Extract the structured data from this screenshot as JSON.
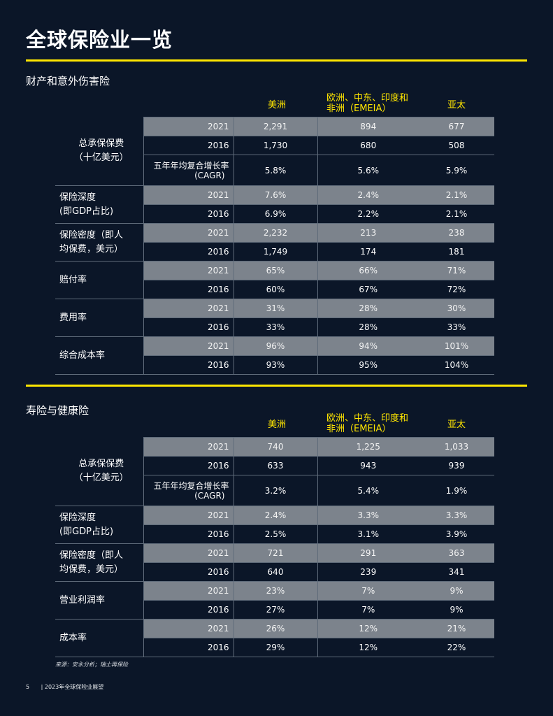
{
  "page_title": "全球保险业一览",
  "columns": {
    "americas": "美洲",
    "emeia_line1": "欧洲、中东、印度和",
    "emeia_line2": "非洲（EMEIA）",
    "apac": "亚太"
  },
  "pc": {
    "title": "财产和意外伤害险",
    "gwp_label_line1": "总承保保费",
    "gwp_label_line2": "（十亿美元）",
    "cagr_label_line1": "五年年均复合增长率",
    "cagr_label_line2": "(CAGR)",
    "gwp": [
      {
        "year": "2021",
        "am": "2,291",
        "em": "894",
        "ap": "677"
      },
      {
        "year": "2016",
        "am": "1,730",
        "em": "680",
        "ap": "508"
      }
    ],
    "cagr": {
      "am": "5.8%",
      "em": "5.6%",
      "ap": "5.9%"
    },
    "groups": [
      {
        "label_line1": "保险深度",
        "label_line2": "(即GDP占比)",
        "rows": [
          {
            "year": "2021",
            "am": "7.6%",
            "em": "2.4%",
            "ap": "2.1%"
          },
          {
            "year": "2016",
            "am": "6.9%",
            "em": "2.2%",
            "ap": "2.1%"
          }
        ]
      },
      {
        "label_line1": "保险密度（即人",
        "label_line2": "均保费，美元）",
        "rows": [
          {
            "year": "2021",
            "am": "2,232",
            "em": "213",
            "ap": "238"
          },
          {
            "year": "2016",
            "am": "1,749",
            "em": "174",
            "ap": "181"
          }
        ]
      },
      {
        "label_line1": "赔付率",
        "label_line2": "",
        "rows": [
          {
            "year": "2021",
            "am": "65%",
            "em": "66%",
            "ap": "71%"
          },
          {
            "year": "2016",
            "am": "60%",
            "em": "67%",
            "ap": "72%"
          }
        ]
      },
      {
        "label_line1": "费用率",
        "label_line2": "",
        "rows": [
          {
            "year": "2021",
            "am": "31%",
            "em": "28%",
            "ap": "30%"
          },
          {
            "year": "2016",
            "am": "33%",
            "em": "28%",
            "ap": "33%"
          }
        ]
      },
      {
        "label_line1": "综合成本率",
        "label_line2": "",
        "rows": [
          {
            "year": "2021",
            "am": "96%",
            "em": "94%",
            "ap": "101%"
          },
          {
            "year": "2016",
            "am": "93%",
            "em": "95%",
            "ap": "104%"
          }
        ]
      }
    ]
  },
  "life": {
    "title": "寿险与健康险",
    "gwp_label_line1": "总承保保费",
    "gwp_label_line2": "（十亿美元）",
    "cagr_label_line1": "五年年均复合增长率",
    "cagr_label_line2": "(CAGR)",
    "gwp": [
      {
        "year": "2021",
        "am": "740",
        "em": "1,225",
        "ap": "1,033"
      },
      {
        "year": "2016",
        "am": "633",
        "em": "943",
        "ap": "939"
      }
    ],
    "cagr": {
      "am": "3.2%",
      "em": "5.4%",
      "ap": "1.9%"
    },
    "groups": [
      {
        "label_line1": "保险深度",
        "label_line2": "(即GDP占比)",
        "rows": [
          {
            "year": "2021",
            "am": "2.4%",
            "em": "3.3%",
            "ap": "3.3%"
          },
          {
            "year": "2016",
            "am": "2.5%",
            "em": "3.1%",
            "ap": "3.9%"
          }
        ]
      },
      {
        "label_line1": "保险密度（即人",
        "label_line2": "均保费，美元）",
        "rows": [
          {
            "year": "2021",
            "am": "721",
            "em": "291",
            "ap": "363"
          },
          {
            "year": "2016",
            "am": "640",
            "em": "239",
            "ap": "341"
          }
        ]
      },
      {
        "label_line1": "营业利润率",
        "label_line2": "",
        "rows": [
          {
            "year": "2021",
            "am": "23%",
            "em": "7%",
            "ap": "9%"
          },
          {
            "year": "2016",
            "am": "27%",
            "em": "7%",
            "ap": "9%"
          }
        ]
      },
      {
        "label_line1": "成本率",
        "label_line2": "",
        "rows": [
          {
            "year": "2021",
            "am": "26%",
            "em": "12%",
            "ap": "21%"
          },
          {
            "year": "2016",
            "am": "29%",
            "em": "12%",
            "ap": "22%"
          }
        ]
      }
    ]
  },
  "source": "来源：安永分析；瑞士再保险",
  "footer": {
    "page": "5",
    "text": "| 2023年全球保险业展望"
  }
}
